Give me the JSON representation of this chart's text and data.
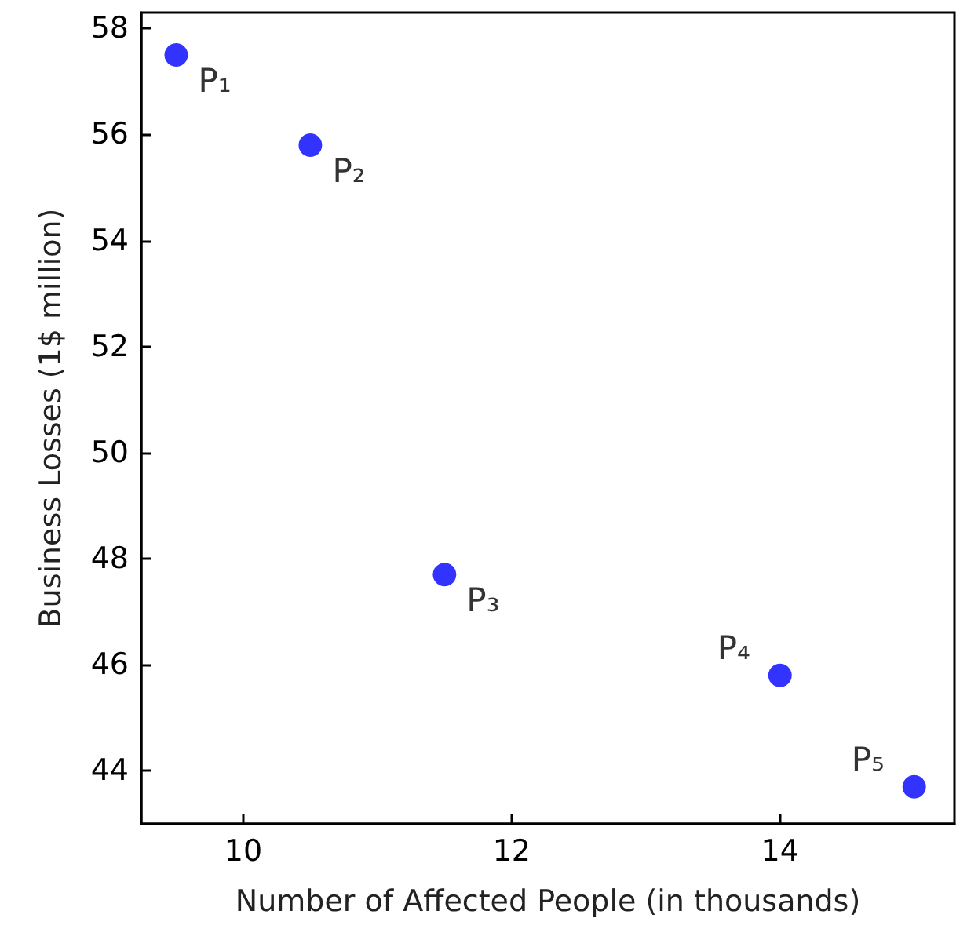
{
  "chart_data": {
    "type": "scatter",
    "xlabel": "Number of Affected People (in thousands)",
    "ylabel": "Business Losses (1$ million)",
    "x": [
      9.5,
      10.5,
      11.5,
      14,
      15
    ],
    "values": [
      57.5,
      55.8,
      47.7,
      45.8,
      43.7
    ],
    "color": "#0000ff",
    "marker": "circle",
    "grid": false,
    "xlim": [
      9.24,
      15.3
    ],
    "xticks": [
      10,
      12,
      14
    ],
    "ylim": [
      43,
      58.3
    ],
    "yticks": [
      44,
      46,
      48,
      50,
      52,
      54,
      56,
      58
    ],
    "annotations": [
      {
        "text": "P₁",
        "x": 9.5,
        "y": 57.5
      },
      {
        "text": "P₂",
        "x": 10.5,
        "y": 55.8
      },
      {
        "text": "P₃",
        "x": 11.5,
        "y": 47.7
      },
      {
        "text": "P₄",
        "x": 14,
        "y": 45.8
      },
      {
        "text": "P₅",
        "x": 15,
        "y": 43.7
      }
    ]
  }
}
